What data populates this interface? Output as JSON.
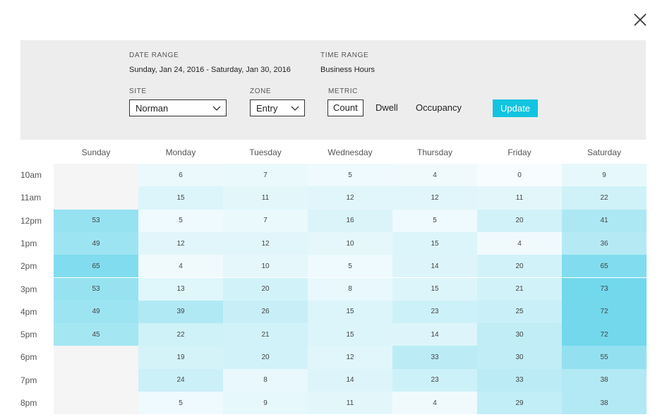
{
  "filters": {
    "date_range_label": "DATE RANGE",
    "date_range_value": "Sunday, Jan 24, 2016 - Saturday, Jan 30, 2016",
    "time_range_label": "TIME RANGE",
    "time_range_value": "Business Hours",
    "site_label": "SITE",
    "site_value": "Norman",
    "zone_label": "ZONE",
    "zone_value": "Entry",
    "metric_label": "METRIC",
    "metric_options": [
      "Count",
      "Dwell",
      "Occupancy"
    ],
    "metric_selected": "Count",
    "update_label": "Update"
  },
  "heatmap": {
    "days": [
      "Sunday",
      "Monday",
      "Tuesday",
      "Wednesday",
      "Thursday",
      "Friday",
      "Saturday"
    ],
    "hours": [
      "10am",
      "11am",
      "12pm",
      "1pm",
      "2pm",
      "3pm",
      "4pm",
      "5pm",
      "6pm",
      "7pm",
      "8pm"
    ],
    "values": [
      [
        null,
        6,
        7,
        5,
        4,
        0,
        9
      ],
      [
        null,
        15,
        11,
        12,
        12,
        11,
        22
      ],
      [
        53,
        5,
        7,
        16,
        5,
        20,
        41
      ],
      [
        49,
        12,
        12,
        10,
        15,
        4,
        36
      ],
      [
        65,
        4,
        10,
        5,
        14,
        20,
        65
      ],
      [
        53,
        13,
        20,
        8,
        15,
        21,
        73
      ],
      [
        49,
        39,
        26,
        15,
        23,
        25,
        72
      ],
      [
        45,
        22,
        21,
        15,
        14,
        30,
        72
      ],
      [
        null,
        19,
        20,
        12,
        33,
        30,
        55
      ],
      [
        null,
        24,
        8,
        14,
        23,
        33,
        38
      ],
      [
        null,
        5,
        9,
        11,
        4,
        29,
        38
      ]
    ]
  },
  "colors": {
    "accent": "#12c4e0",
    "empty_cell": "#f5f5f5"
  }
}
